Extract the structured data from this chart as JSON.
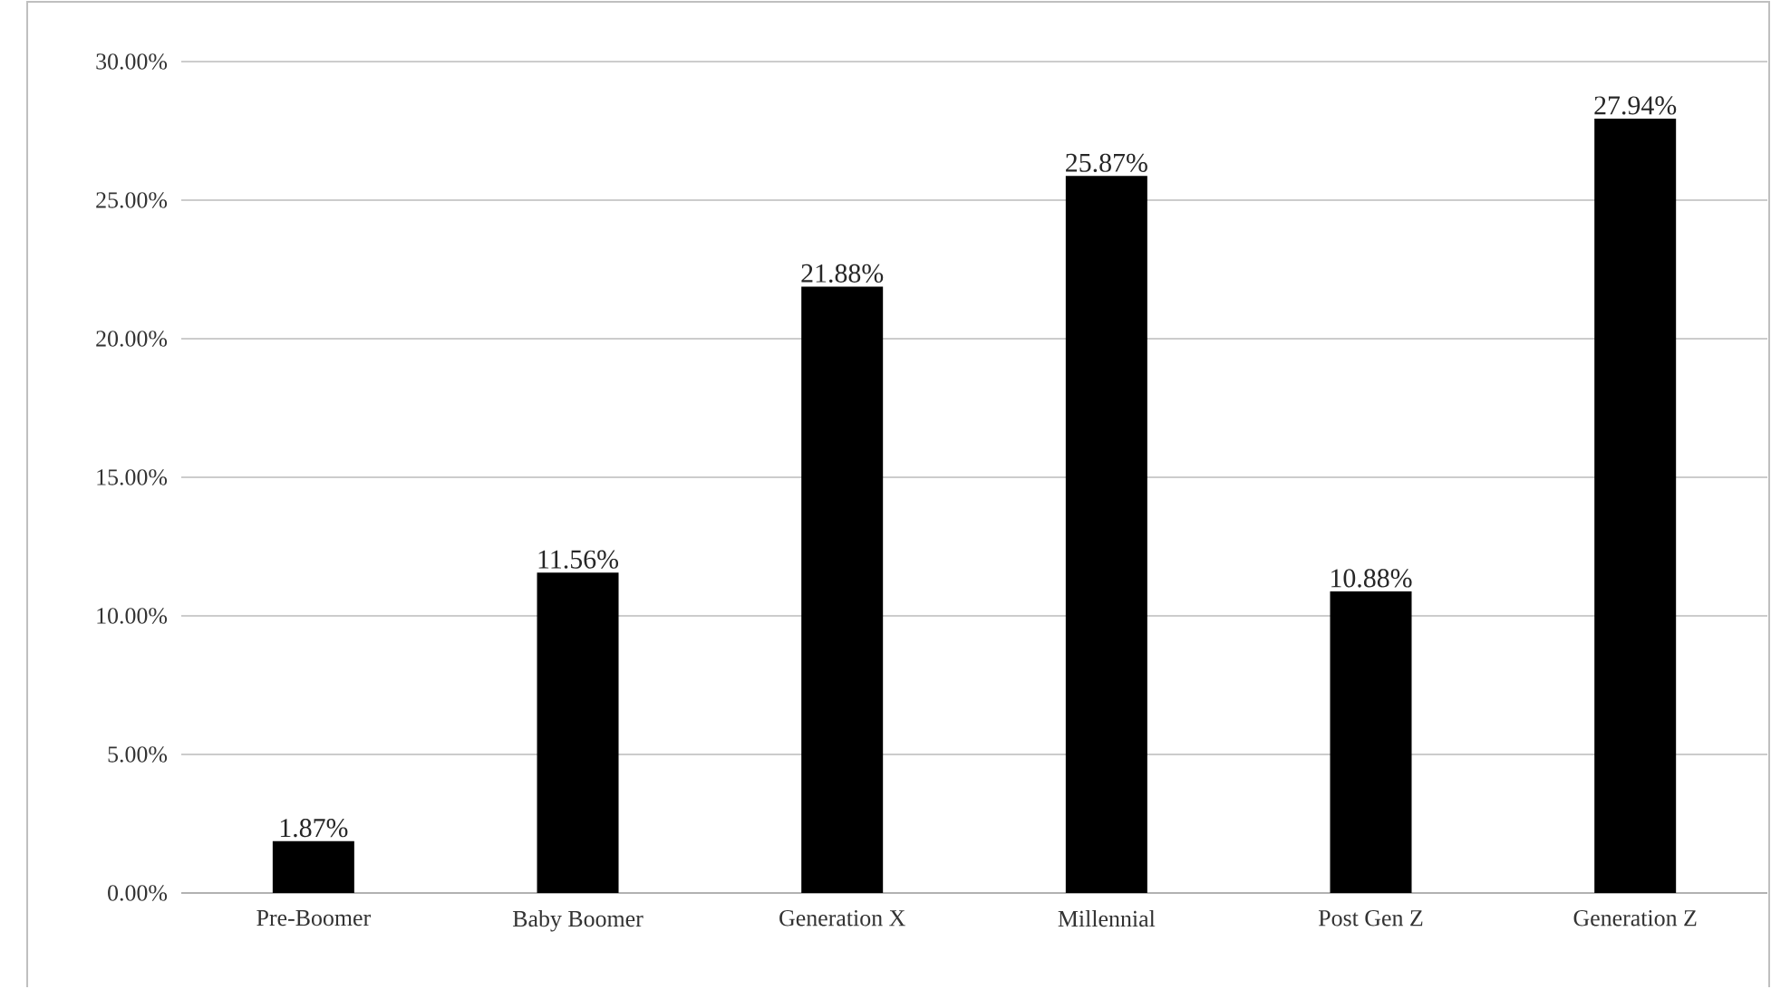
{
  "chart_data": {
    "type": "bar",
    "categories": [
      "Pre-Boomer",
      "Baby Boomer",
      "Generation X",
      "Millennial",
      "Post Gen Z",
      "Generation Z"
    ],
    "values": [
      1.87,
      11.56,
      21.88,
      25.87,
      10.88,
      27.94
    ],
    "value_labels": [
      "1.87%",
      "11.56%",
      "21.88%",
      "25.87%",
      "10.88%",
      "27.94%"
    ],
    "color": "#000000",
    "ylim": [
      0,
      30
    ],
    "yticks": [
      {
        "value": 0,
        "label": "0.00%"
      },
      {
        "value": 5,
        "label": "5.00%"
      },
      {
        "value": 10,
        "label": "10.00%"
      },
      {
        "value": 15,
        "label": "15.00%"
      },
      {
        "value": 20,
        "label": "20.00%"
      },
      {
        "value": 25,
        "label": "25.00%"
      },
      {
        "value": 30,
        "label": "30.00%"
      }
    ],
    "grid": "y"
  }
}
